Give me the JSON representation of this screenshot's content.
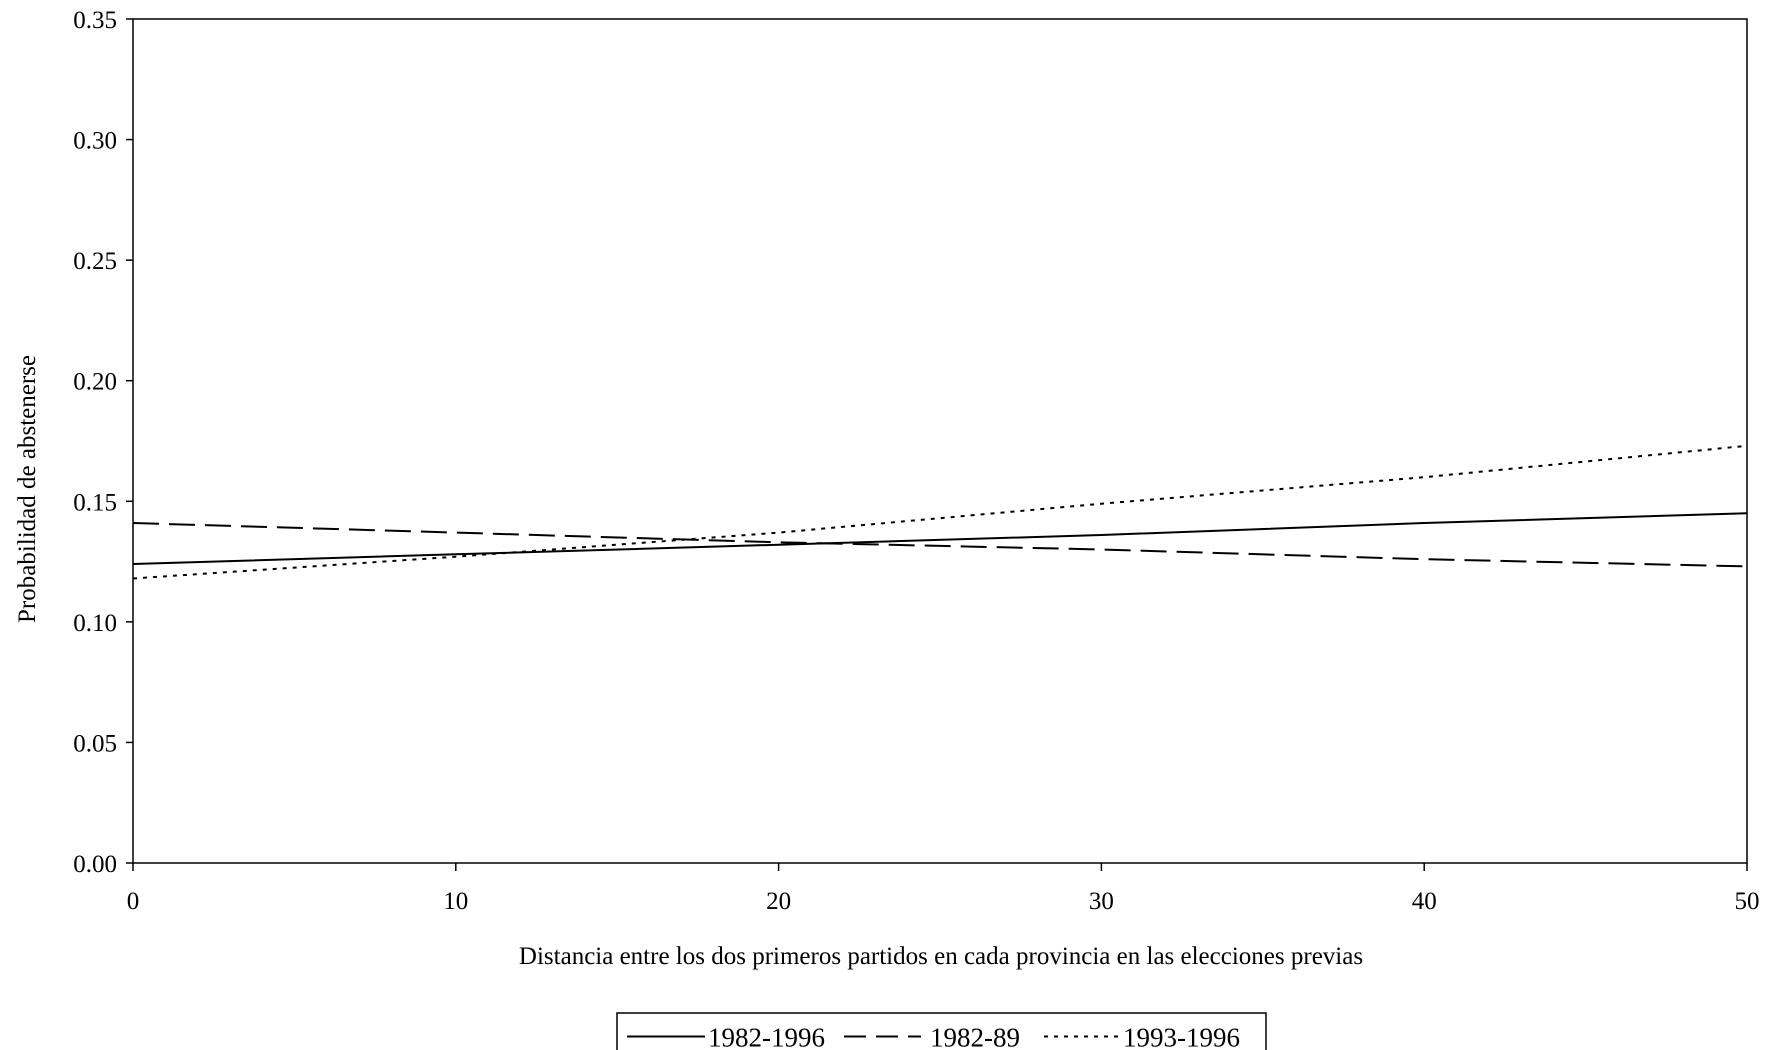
{
  "chart_data": {
    "type": "line",
    "title": "",
    "xlabel": "Distancia entre los dos primeros partidos en cada provincia en las elecciones previas",
    "ylabel": "Probabilidad de abstenerse",
    "xlim": [
      0,
      50
    ],
    "ylim": [
      0,
      0.35
    ],
    "x_ticks": [
      0,
      10,
      20,
      30,
      40,
      50
    ],
    "x_tick_labels": [
      "0",
      "10",
      "20",
      "30",
      "40",
      "50"
    ],
    "y_ticks": [
      0,
      0.05,
      0.1,
      0.15,
      0.2,
      0.25,
      0.3,
      0.35
    ],
    "y_tick_labels": [
      "0.00",
      "0.05",
      "0.10",
      "0.15",
      "0.20",
      "0.25",
      "0.30",
      "0.35"
    ],
    "grid": false,
    "legend_position": "bottom-center",
    "series": [
      {
        "name": "1982-1996",
        "style": "solid",
        "color": "#000000",
        "x": [
          0,
          10,
          20,
          30,
          40,
          50
        ],
        "y": [
          0.124,
          0.128,
          0.132,
          0.136,
          0.141,
          0.145
        ]
      },
      {
        "name": "1982-89",
        "style": "dashed",
        "color": "#000000",
        "x": [
          0,
          10,
          20,
          30,
          40,
          50
        ],
        "y": [
          0.141,
          0.137,
          0.133,
          0.13,
          0.126,
          0.123
        ]
      },
      {
        "name": "1993-1996",
        "style": "dotted",
        "color": "#000000",
        "x": [
          0,
          10,
          20,
          30,
          40,
          50
        ],
        "y": [
          0.118,
          0.127,
          0.137,
          0.149,
          0.16,
          0.173
        ]
      }
    ]
  }
}
